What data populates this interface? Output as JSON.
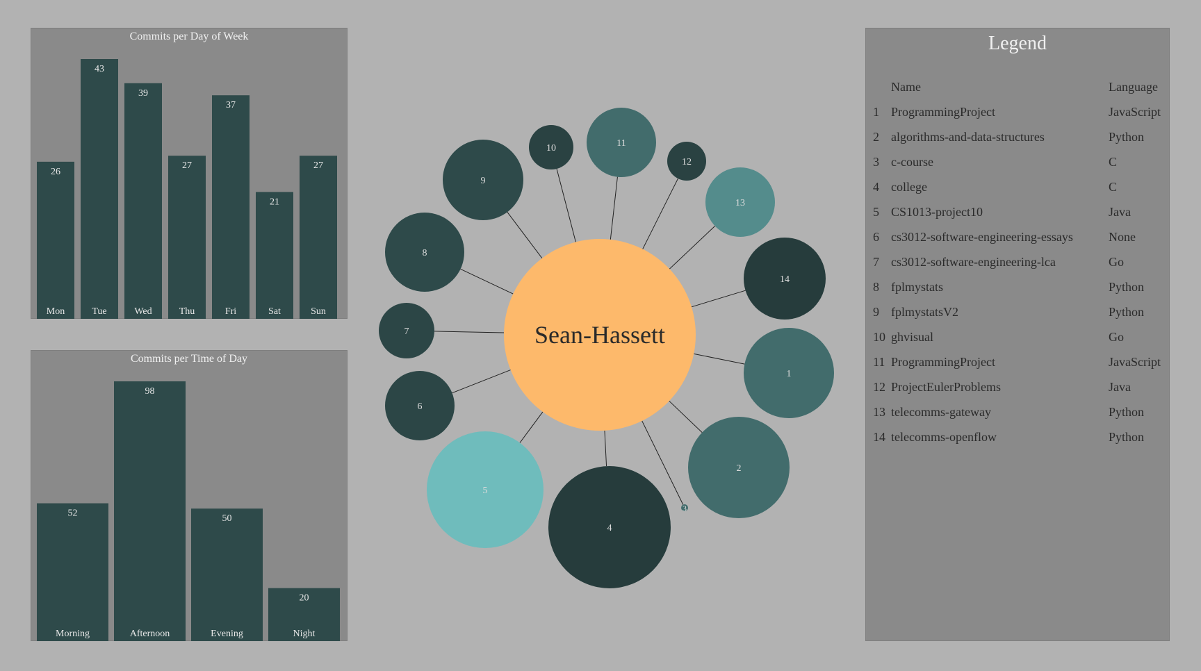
{
  "chart_data": [
    {
      "type": "bar",
      "title": "Commits per Day of Week",
      "categories": [
        "Mon",
        "Tue",
        "Wed",
        "Thu",
        "Fri",
        "Sat",
        "Sun"
      ],
      "values": [
        26,
        43,
        39,
        27,
        37,
        21,
        27
      ],
      "ylim": [
        0,
        43
      ],
      "grid": false,
      "bar_color": "#2e4a4a"
    },
    {
      "type": "bar",
      "title": "Commits per Time of Day",
      "categories": [
        "Morning",
        "Afternoon",
        "Evening",
        "Night"
      ],
      "values": [
        52,
        98,
        50,
        20
      ],
      "ylim": [
        0,
        98
      ],
      "grid": false,
      "bar_color": "#2e4a4a"
    },
    {
      "type": "bubble",
      "center": {
        "label": "Sean-Hassett",
        "color": "#fdb96b"
      },
      "nodes": [
        {
          "id": "1",
          "color": "#426c6c"
        },
        {
          "id": "2",
          "color": "#426c6c"
        },
        {
          "id": "3",
          "color": "#426c6c"
        },
        {
          "id": "4",
          "color": "#263c3c"
        },
        {
          "id": "5",
          "color": "#6fbcbc"
        },
        {
          "id": "6",
          "color": "#2c4646"
        },
        {
          "id": "7",
          "color": "#2c4646"
        },
        {
          "id": "8",
          "color": "#2e4a4a"
        },
        {
          "id": "9",
          "color": "#2e4a4a"
        },
        {
          "id": "10",
          "color": "#2a4242"
        },
        {
          "id": "11",
          "color": "#426c6c"
        },
        {
          "id": "12",
          "color": "#2a4242"
        },
        {
          "id": "13",
          "color": "#548c8c"
        },
        {
          "id": "14",
          "color": "#263c3c"
        }
      ]
    }
  ],
  "legend": {
    "title": "Legend",
    "headers": {
      "name": "Name",
      "language": "Language"
    },
    "rows": [
      {
        "idx": "1",
        "name": "ProgrammingProject",
        "language": "JavaScript"
      },
      {
        "idx": "2",
        "name": "algorithms-and-data-structures",
        "language": "Python"
      },
      {
        "idx": "3",
        "name": "c-course",
        "language": "C"
      },
      {
        "idx": "4",
        "name": "college",
        "language": "C"
      },
      {
        "idx": "5",
        "name": "CS1013-project10",
        "language": "Java"
      },
      {
        "idx": "6",
        "name": "cs3012-software-engineering-essays",
        "language": "None"
      },
      {
        "idx": "7",
        "name": "cs3012-software-engineering-lca",
        "language": "Go"
      },
      {
        "idx": "8",
        "name": "fplmystats",
        "language": "Python"
      },
      {
        "idx": "9",
        "name": "fplmystatsV2",
        "language": "Python"
      },
      {
        "idx": "10",
        "name": "ghvisual",
        "language": "Go"
      },
      {
        "idx": "11",
        "name": "ProgrammingProject",
        "language": "JavaScript"
      },
      {
        "idx": "12",
        "name": "ProjectEulerProblems",
        "language": "Java"
      },
      {
        "idx": "13",
        "name": "telecomms-gateway",
        "language": "Python"
      },
      {
        "idx": "14",
        "name": "telecomms-openflow",
        "language": "Python"
      }
    ]
  },
  "colors": {
    "background": "#b2b2b2",
    "panel": "#8a8a8a",
    "bar": "#2e4a4a",
    "center": "#fdb96b"
  }
}
